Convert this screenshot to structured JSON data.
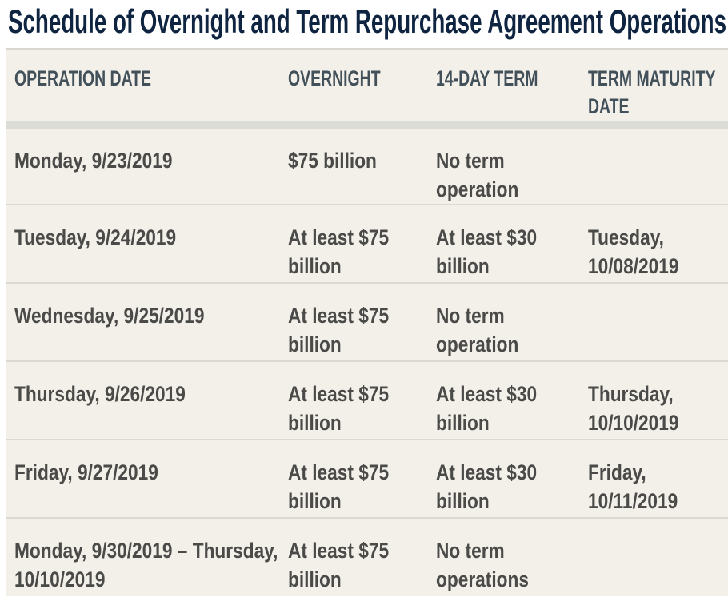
{
  "page": {
    "title": "Schedule of Overnight and Term Repurchase Agreement Operations"
  },
  "table": {
    "headers": [
      "OPERATION DATE",
      "OVERNIGHT",
      "14-DAY TERM",
      "TERM MATURITY\nDATE"
    ],
    "rows": [
      [
        "Monday, 9/23/2019",
        "$75 billion",
        "No term\noperation",
        ""
      ],
      [
        "Tuesday, 9/24/2019",
        "At least $75\nbillion",
        "At least $30\nbillion",
        "Tuesday,\n10/08/2019"
      ],
      [
        "Wednesday, 9/25/2019",
        "At least $75\nbillion",
        "No term\noperation",
        ""
      ],
      [
        "Thursday, 9/26/2019",
        "At least $75\nbillion",
        "At least $30\nbillion",
        "Thursday,\n10/10/2019"
      ],
      [
        "Friday, 9/27/2019",
        "At least $75\nbillion",
        "At least $30\nbillion",
        "Friday,\n10/11/2019"
      ],
      [
        "Monday, 9/30/2019 – Thursday,\n10/10/2019",
        "At least $75\nbillion",
        "No term\noperations",
        ""
      ]
    ]
  },
  "colors": {
    "title_text": "#0e2440",
    "header_text": "#42505a",
    "body_text": "#4a4a48",
    "table_background": "#f3f0e9",
    "table_top_border": "#d9d6cf",
    "header_divider": "#dcdcd7",
    "row_divider": "#dbd9d3",
    "page_background": "#ffffff"
  }
}
